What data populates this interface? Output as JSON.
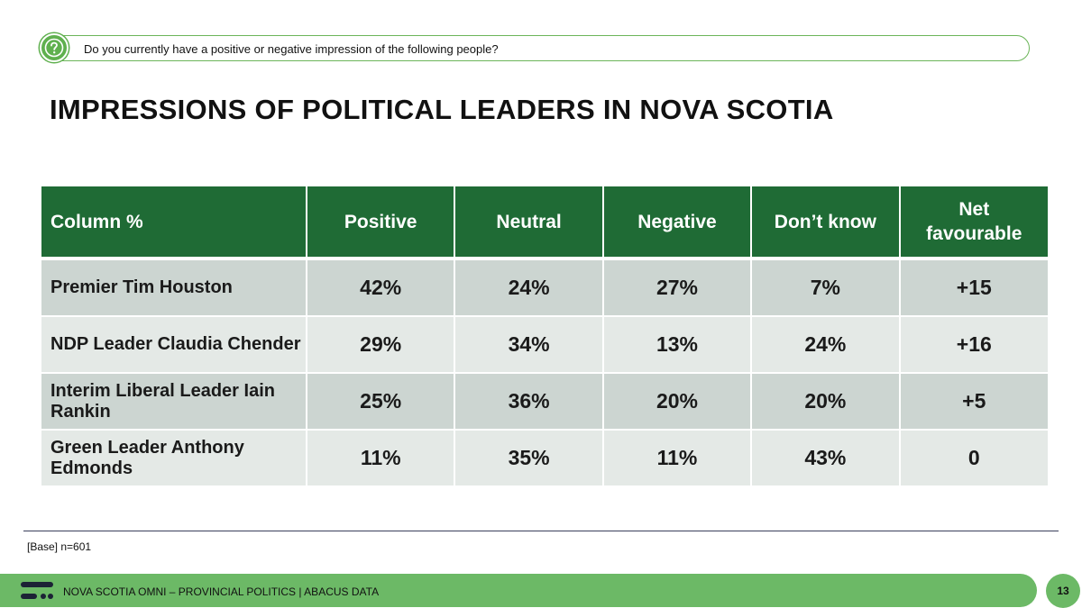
{
  "question": {
    "text": "Do you currently have a positive or negative impression of the following people?",
    "icon": "question-icon"
  },
  "title": "IMPRESSIONS OF POLITICAL LEADERS IN NOVA SCOTIA",
  "chart_data": {
    "type": "table",
    "title": "IMPRESSIONS OF POLITICAL LEADERS IN NOVA SCOTIA",
    "columns": [
      "Column %",
      "Positive",
      "Neutral",
      "Negative",
      "Don’t know",
      "Net favourable"
    ],
    "rows": [
      {
        "label": "Premier Tim Houston",
        "values": [
          "42%",
          "24%",
          "27%",
          "7%",
          "+15"
        ]
      },
      {
        "label": "NDP Leader Claudia Chender",
        "values": [
          "29%",
          "34%",
          "13%",
          "24%",
          "+16"
        ]
      },
      {
        "label": "Interim Liberal Leader Iain Rankin",
        "values": [
          "25%",
          "36%",
          "20%",
          "20%",
          "+5"
        ]
      },
      {
        "label": "Green Leader Anthony Edmonds",
        "values": [
          "11%",
          "35%",
          "11%",
          "43%",
          "0"
        ]
      }
    ]
  },
  "base": "[Base] n=601",
  "footer": {
    "text": "NOVA SCOTIA OMNI – PROVINCIAL POLITICS  |  ABACUS DATA",
    "page": "13"
  },
  "colors": {
    "header_green": "#1f6b35",
    "accent_green": "#6cb966",
    "row_dark": "#ccd5d1",
    "row_light": "#e4e9e6"
  }
}
